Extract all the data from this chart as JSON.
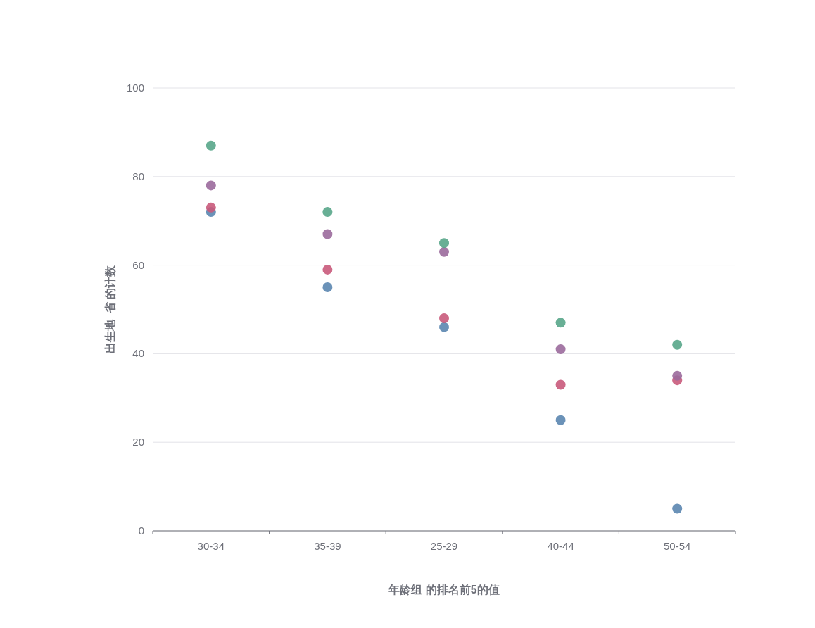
{
  "chart_data": {
    "type": "scatter",
    "xlabel": "年龄组 的排名前5的值",
    "ylabel": "出生地_省 的计数",
    "categories": [
      "30-34",
      "35-39",
      "25-29",
      "40-44",
      "50-54"
    ],
    "ylim": [
      0,
      100
    ],
    "yticks": [
      0,
      20,
      40,
      60,
      80,
      100
    ],
    "grid": "y",
    "marker": "circle",
    "series": [
      {
        "color": "#5b86b0",
        "values": [
          72,
          55,
          46,
          25,
          5
        ]
      },
      {
        "color": "#c95a7b",
        "values": [
          73,
          59,
          48,
          33,
          34
        ]
      },
      {
        "color": "#9b6a9c",
        "values": [
          78,
          67,
          63,
          41,
          35
        ]
      },
      {
        "color": "#58a68a",
        "values": [
          87,
          72,
          65,
          47,
          42
        ]
      }
    ]
  }
}
